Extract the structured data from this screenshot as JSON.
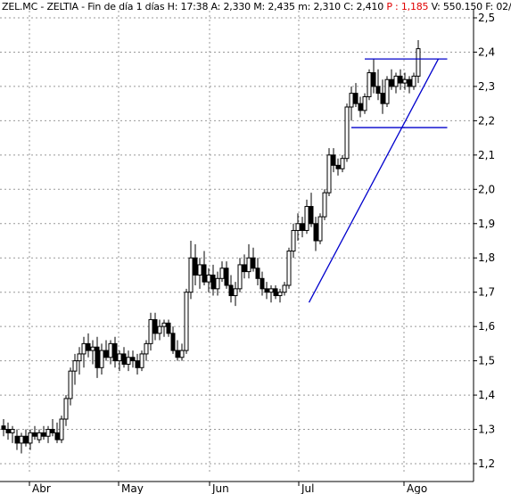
{
  "header": {
    "prefix": "ZEL.MC - ZELTIA - Fin de día 1 días  H: 17:38  A: 2,330  M: 2,435  m: 2,310  C: 2,410 ",
    "p_label": " P : 1,185",
    "suffix": "  V: 550.150  F: 02/"
  },
  "colors": {
    "background": "#ffffff",
    "grid": "#999999",
    "candle": "#000000",
    "trendline": "#0000cc",
    "header_highlight": "#e00000"
  },
  "chart_data": {
    "type": "candlestick",
    "title": "",
    "xlabel": "",
    "ylabel": "",
    "ylim": [
      1.2,
      2.5
    ],
    "yticks": [
      "2,5",
      "2,4",
      "2,3",
      "2,2",
      "2,1",
      "2,0",
      "1,9",
      "1,8",
      "1,7",
      "1,6",
      "1,5",
      "1,4",
      "1,3",
      "1,2"
    ],
    "ytick_values": [
      2.5,
      2.4,
      2.3,
      2.2,
      2.1,
      2.0,
      1.9,
      1.8,
      1.7,
      1.6,
      1.5,
      1.4,
      1.3,
      1.2
    ],
    "xticks": [
      "Abr",
      "May",
      "Jun",
      "Jul",
      "Ago"
    ],
    "grid": true,
    "candles": [
      [
        1.31,
        1.33,
        1.28,
        1.3
      ],
      [
        1.3,
        1.32,
        1.27,
        1.29
      ],
      [
        1.29,
        1.31,
        1.26,
        1.3
      ],
      [
        1.28,
        1.3,
        1.24,
        1.26
      ],
      [
        1.26,
        1.29,
        1.23,
        1.28
      ],
      [
        1.28,
        1.3,
        1.25,
        1.26
      ],
      [
        1.26,
        1.3,
        1.24,
        1.29
      ],
      [
        1.29,
        1.31,
        1.27,
        1.28
      ],
      [
        1.27,
        1.3,
        1.26,
        1.29
      ],
      [
        1.29,
        1.31,
        1.27,
        1.28
      ],
      [
        1.28,
        1.31,
        1.26,
        1.3
      ],
      [
        1.3,
        1.33,
        1.28,
        1.29
      ],
      [
        1.29,
        1.32,
        1.26,
        1.27
      ],
      [
        1.27,
        1.34,
        1.26,
        1.33
      ],
      [
        1.33,
        1.4,
        1.31,
        1.39
      ],
      [
        1.39,
        1.48,
        1.37,
        1.47
      ],
      [
        1.47,
        1.52,
        1.43,
        1.5
      ],
      [
        1.5,
        1.54,
        1.46,
        1.52
      ],
      [
        1.52,
        1.57,
        1.48,
        1.55
      ],
      [
        1.55,
        1.58,
        1.51,
        1.53
      ],
      [
        1.53,
        1.56,
        1.49,
        1.54
      ],
      [
        1.54,
        1.57,
        1.45,
        1.48
      ],
      [
        1.48,
        1.55,
        1.46,
        1.53
      ],
      [
        1.53,
        1.56,
        1.5,
        1.51
      ],
      [
        1.51,
        1.56,
        1.49,
        1.55
      ],
      [
        1.55,
        1.57,
        1.48,
        1.5
      ],
      [
        1.5,
        1.53,
        1.47,
        1.52
      ],
      [
        1.52,
        1.54,
        1.48,
        1.49
      ],
      [
        1.49,
        1.53,
        1.47,
        1.51
      ],
      [
        1.51,
        1.53,
        1.48,
        1.5
      ],
      [
        1.5,
        1.52,
        1.46,
        1.48
      ],
      [
        1.48,
        1.53,
        1.47,
        1.52
      ],
      [
        1.52,
        1.56,
        1.5,
        1.55
      ],
      [
        1.55,
        1.64,
        1.53,
        1.62
      ],
      [
        1.62,
        1.64,
        1.56,
        1.58
      ],
      [
        1.58,
        1.62,
        1.56,
        1.6
      ],
      [
        1.6,
        1.62,
        1.57,
        1.61
      ],
      [
        1.61,
        1.62,
        1.57,
        1.58
      ],
      [
        1.58,
        1.6,
        1.52,
        1.53
      ],
      [
        1.53,
        1.56,
        1.5,
        1.51
      ],
      [
        1.51,
        1.55,
        1.5,
        1.53
      ],
      [
        1.53,
        1.71,
        1.52,
        1.7
      ],
      [
        1.7,
        1.85,
        1.68,
        1.8
      ],
      [
        1.8,
        1.84,
        1.72,
        1.75
      ],
      [
        1.75,
        1.8,
        1.71,
        1.78
      ],
      [
        1.78,
        1.82,
        1.72,
        1.73
      ],
      [
        1.73,
        1.77,
        1.7,
        1.75
      ],
      [
        1.75,
        1.78,
        1.69,
        1.71
      ],
      [
        1.71,
        1.76,
        1.69,
        1.74
      ],
      [
        1.74,
        1.79,
        1.73,
        1.77
      ],
      [
        1.77,
        1.79,
        1.71,
        1.72
      ],
      [
        1.72,
        1.75,
        1.67,
        1.69
      ],
      [
        1.69,
        1.73,
        1.66,
        1.71
      ],
      [
        1.71,
        1.8,
        1.7,
        1.78
      ],
      [
        1.78,
        1.81,
        1.74,
        1.76
      ],
      [
        1.76,
        1.84,
        1.74,
        1.8
      ],
      [
        1.8,
        1.83,
        1.76,
        1.77
      ],
      [
        1.77,
        1.8,
        1.72,
        1.74
      ],
      [
        1.74,
        1.76,
        1.69,
        1.71
      ],
      [
        1.71,
        1.73,
        1.68,
        1.7
      ],
      [
        1.7,
        1.72,
        1.67,
        1.71
      ],
      [
        1.71,
        1.72,
        1.68,
        1.69
      ],
      [
        1.69,
        1.71,
        1.67,
        1.7
      ],
      [
        1.7,
        1.73,
        1.69,
        1.72
      ],
      [
        1.72,
        1.83,
        1.71,
        1.82
      ],
      [
        1.82,
        1.9,
        1.8,
        1.88
      ],
      [
        1.88,
        1.93,
        1.85,
        1.9
      ],
      [
        1.9,
        1.92,
        1.86,
        1.88
      ],
      [
        1.88,
        1.97,
        1.87,
        1.95
      ],
      [
        1.95,
        1.99,
        1.89,
        1.9
      ],
      [
        1.9,
        1.92,
        1.82,
        1.85
      ],
      [
        1.85,
        1.93,
        1.84,
        1.92
      ],
      [
        1.92,
        2.0,
        1.91,
        1.99
      ],
      [
        1.99,
        2.12,
        1.98,
        2.1
      ],
      [
        2.1,
        2.12,
        2.05,
        2.07
      ],
      [
        2.07,
        2.09,
        2.04,
        2.06
      ],
      [
        2.06,
        2.1,
        2.05,
        2.09
      ],
      [
        2.09,
        2.25,
        2.08,
        2.24
      ],
      [
        2.24,
        2.3,
        2.2,
        2.28
      ],
      [
        2.28,
        2.31,
        2.24,
        2.25
      ],
      [
        2.25,
        2.27,
        2.21,
        2.23
      ],
      [
        2.23,
        2.28,
        2.22,
        2.27
      ],
      [
        2.27,
        2.35,
        2.26,
        2.34
      ],
      [
        2.34,
        2.38,
        2.28,
        2.3
      ],
      [
        2.3,
        2.35,
        2.26,
        2.28
      ],
      [
        2.28,
        2.32,
        2.22,
        2.25
      ],
      [
        2.25,
        2.33,
        2.24,
        2.32
      ],
      [
        2.32,
        2.35,
        2.29,
        2.3
      ],
      [
        2.3,
        2.34,
        2.28,
        2.33
      ],
      [
        2.33,
        2.35,
        2.29,
        2.31
      ],
      [
        2.31,
        2.34,
        2.29,
        2.32
      ],
      [
        2.32,
        2.33,
        2.28,
        2.3
      ],
      [
        2.3,
        2.34,
        2.29,
        2.33
      ],
      [
        2.33,
        2.435,
        2.31,
        2.41
      ]
    ],
    "trendlines": [
      {
        "name": "",
        "x0": 68.5,
        "y0": 1.67,
        "x1": 97.5,
        "y1": 2.38
      },
      {
        "name": "",
        "x0": 81,
        "y0": 2.38,
        "x1": 99.5,
        "y1": 2.38
      },
      {
        "name": "",
        "x0": 78,
        "y0": 2.18,
        "x1": 99.5,
        "y1": 2.18
      }
    ],
    "candle_count": 94
  }
}
